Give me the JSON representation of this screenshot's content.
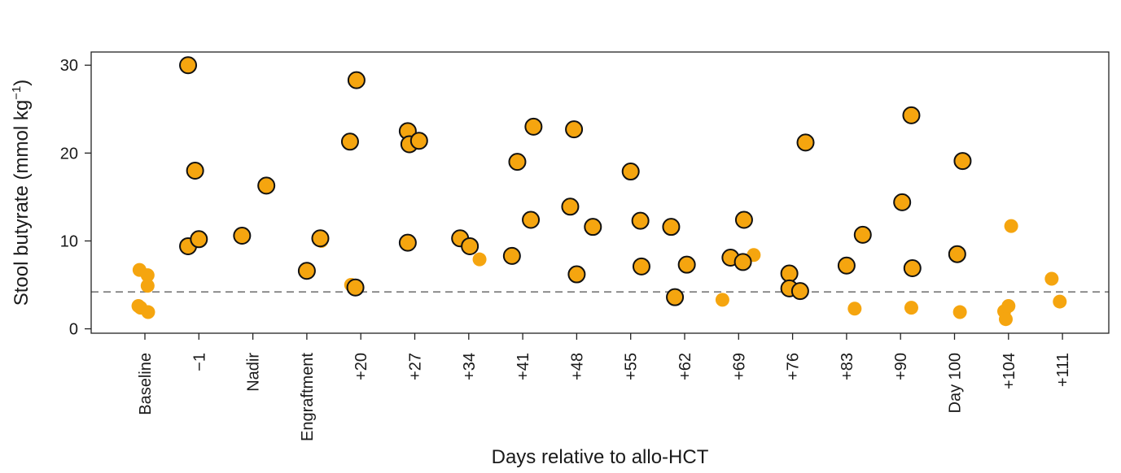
{
  "chart_data": {
    "type": "scatter",
    "title": "",
    "xlabel": "Days relative to allo-HCT",
    "ylabel": "Stool butyrate (mmol kg",
    "ylabel_superscript": "−1",
    "ylabel_close": ")",
    "ylim": [
      -0.5,
      31.5
    ],
    "yticks": [
      0,
      10,
      20,
      30
    ],
    "threshold": 4.2,
    "grid": false,
    "legend": "none",
    "colors": {
      "fill": "#F5A50F",
      "outline": "#111111",
      "threshold": "#777777"
    },
    "categories": [
      "Baseline",
      "−1",
      "Nadir",
      "Engraftment",
      "+20",
      "+27",
      "+34",
      "+41",
      "+48",
      "+55",
      "+62",
      "+69",
      "+76",
      "+83",
      "+90",
      "Day 100",
      "+104",
      "+111"
    ],
    "series": [
      {
        "outlined": true,
        "points": [
          {
            "x": 1,
            "dx": -0.2,
            "y": 30.0
          },
          {
            "x": 1,
            "dx": -0.07,
            "y": 18.0
          },
          {
            "x": 1,
            "dx": -0.2,
            "y": 9.4
          },
          {
            "x": 1,
            "dx": 0.0,
            "y": 10.2
          },
          {
            "x": 2,
            "dx": -0.2,
            "y": 10.6
          },
          {
            "x": 2,
            "dx": 0.25,
            "y": 16.3
          },
          {
            "x": 3,
            "dx": 0.0,
            "y": 6.6
          },
          {
            "x": 3,
            "dx": 0.25,
            "y": 10.3
          },
          {
            "x": 4,
            "dx": -0.2,
            "y": 21.3
          },
          {
            "x": 4,
            "dx": -0.08,
            "y": 28.3
          },
          {
            "x": 4,
            "dx": -0.1,
            "y": 4.7
          },
          {
            "x": 5,
            "dx": -0.13,
            "y": 22.5
          },
          {
            "x": 5,
            "dx": -0.1,
            "y": 21.0
          },
          {
            "x": 5,
            "dx": 0.08,
            "y": 21.4
          },
          {
            "x": 5,
            "dx": -0.13,
            "y": 9.8
          },
          {
            "x": 6,
            "dx": -0.16,
            "y": 10.3
          },
          {
            "x": 6,
            "dx": 0.02,
            "y": 9.4
          },
          {
            "x": 7,
            "dx": -0.1,
            "y": 19.0
          },
          {
            "x": 7,
            "dx": 0.2,
            "y": 23.0
          },
          {
            "x": 7,
            "dx": 0.15,
            "y": 12.4
          },
          {
            "x": 7,
            "dx": -0.2,
            "y": 8.3
          },
          {
            "x": 8,
            "dx": -0.05,
            "y": 22.7
          },
          {
            "x": 8,
            "dx": -0.12,
            "y": 13.9
          },
          {
            "x": 8,
            "dx": 0.3,
            "y": 11.6
          },
          {
            "x": 8,
            "dx": 0.0,
            "y": 6.2
          },
          {
            "x": 9,
            "dx": 0.0,
            "y": 17.9
          },
          {
            "x": 9,
            "dx": 0.18,
            "y": 12.3
          },
          {
            "x": 9,
            "dx": 0.2,
            "y": 7.1
          },
          {
            "x": 10,
            "dx": -0.25,
            "y": 11.6
          },
          {
            "x": 10,
            "dx": 0.04,
            "y": 7.3
          },
          {
            "x": 10,
            "dx": -0.18,
            "y": 3.6
          },
          {
            "x": 11,
            "dx": -0.15,
            "y": 8.1
          },
          {
            "x": 11,
            "dx": 0.1,
            "y": 12.4
          },
          {
            "x": 11,
            "dx": 0.08,
            "y": 7.6
          },
          {
            "x": 12,
            "dx": 0.24,
            "y": 21.2
          },
          {
            "x": 12,
            "dx": -0.06,
            "y": 6.3
          },
          {
            "x": 12,
            "dx": -0.06,
            "y": 4.6
          },
          {
            "x": 12,
            "dx": 0.14,
            "y": 4.3
          },
          {
            "x": 13,
            "dx": 0.0,
            "y": 7.2
          },
          {
            "x": 13,
            "dx": 0.3,
            "y": 10.7
          },
          {
            "x": 14,
            "dx": 0.2,
            "y": 24.3
          },
          {
            "x": 14,
            "dx": 0.03,
            "y": 14.4
          },
          {
            "x": 14,
            "dx": 0.22,
            "y": 6.9
          },
          {
            "x": 15,
            "dx": 0.15,
            "y": 19.1
          },
          {
            "x": 15,
            "dx": 0.05,
            "y": 8.5
          }
        ]
      },
      {
        "outlined": false,
        "points": [
          {
            "x": 0,
            "dx": -0.1,
            "y": 6.7
          },
          {
            "x": 0,
            "dx": 0.05,
            "y": 6.1
          },
          {
            "x": 0,
            "dx": 0.05,
            "y": 4.9
          },
          {
            "x": 0,
            "dx": -0.12,
            "y": 2.6
          },
          {
            "x": 0,
            "dx": -0.08,
            "y": 2.4
          },
          {
            "x": 0,
            "dx": 0.06,
            "y": 1.9
          },
          {
            "x": 3,
            "dx": 0.27,
            "y": 10.0
          },
          {
            "x": 4,
            "dx": -0.18,
            "y": 5.0
          },
          {
            "x": 6,
            "dx": 0.2,
            "y": 7.9
          },
          {
            "x": 11,
            "dx": -0.3,
            "y": 3.3
          },
          {
            "x": 11,
            "dx": 0.28,
            "y": 8.4
          },
          {
            "x": 13,
            "dx": 0.15,
            "y": 2.3
          },
          {
            "x": 14,
            "dx": 0.2,
            "y": 2.4
          },
          {
            "x": 15,
            "dx": 0.1,
            "y": 1.9
          },
          {
            "x": 16,
            "dx": 0.0,
            "y": 2.6
          },
          {
            "x": 16,
            "dx": -0.08,
            "y": 2.0
          },
          {
            "x": 16,
            "dx": -0.05,
            "y": 1.1
          },
          {
            "x": 16,
            "dx": 0.05,
            "y": 11.7
          },
          {
            "x": 17,
            "dx": -0.2,
            "y": 5.7
          },
          {
            "x": 17,
            "dx": -0.05,
            "y": 3.1
          }
        ]
      }
    ]
  }
}
